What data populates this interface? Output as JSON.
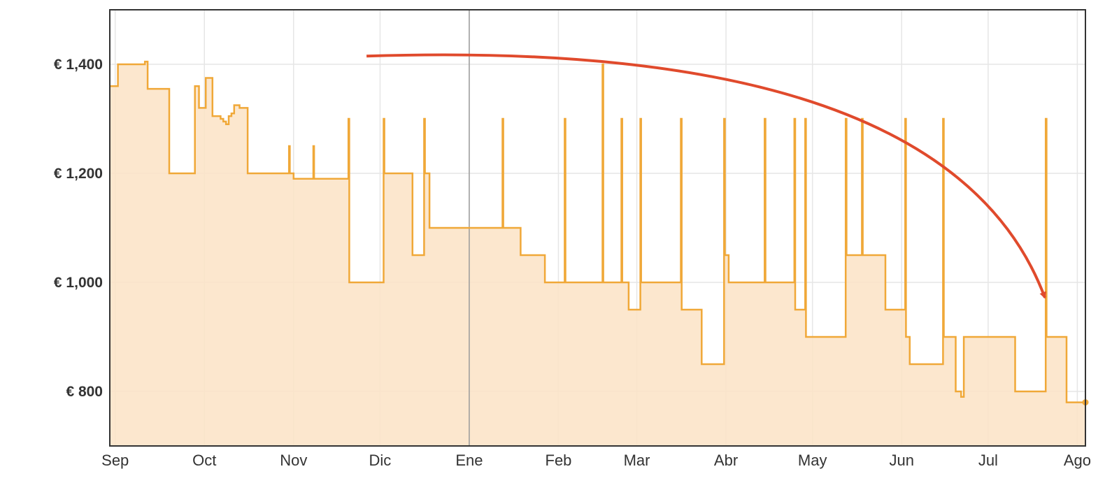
{
  "colors": {
    "line": "#f0a838",
    "fill": "#fbe3c6",
    "grid": "#e6e6e6",
    "frame": "#333333",
    "today_line": "#9a9a9a",
    "arrow": "#e04a2c",
    "text": "#333333"
  },
  "chart_data": {
    "type": "area",
    "step": true,
    "title": "",
    "xlabel": "",
    "ylabel": "",
    "x_unit": "days",
    "xlim": [
      0,
      361
    ],
    "ylim": [
      700,
      1500
    ],
    "grid": true,
    "x_ticks": [
      {
        "label": "Sep",
        "x": 2
      },
      {
        "label": "Oct",
        "x": 35
      },
      {
        "label": "Nov",
        "x": 68
      },
      {
        "label": "Dic",
        "x": 100
      },
      {
        "label": "Ene",
        "x": 133
      },
      {
        "label": "Feb",
        "x": 166
      },
      {
        "label": "Mar",
        "x": 195
      },
      {
        "label": "Abr",
        "x": 228
      },
      {
        "label": "May",
        "x": 260
      },
      {
        "label": "Jun",
        "x": 293
      },
      {
        "label": "Jul",
        "x": 325
      },
      {
        "label": "Ago",
        "x": 358
      }
    ],
    "y_ticks": [
      {
        "label": "€ 800",
        "y": 800
      },
      {
        "label": "€ 1,000",
        "y": 1000
      },
      {
        "label": "€ 1,200",
        "y": 1200
      },
      {
        "label": "€ 1,400",
        "y": 1400
      }
    ],
    "vertical_marker": {
      "x": 133
    },
    "arrow": {
      "from": [
        95,
        1415
      ],
      "control": [
        310,
        1450
      ],
      "to": [
        346,
        972
      ]
    },
    "series": [
      {
        "step_points": [
          [
            0,
            1360
          ],
          [
            3,
            1400
          ],
          [
            10,
            1400
          ],
          [
            13,
            1405
          ],
          [
            14,
            1355
          ],
          [
            20,
            1355
          ],
          [
            22,
            1200
          ],
          [
            31,
            1200
          ],
          [
            31.5,
            1360
          ],
          [
            33,
            1320
          ],
          [
            35,
            1320
          ],
          [
            35.5,
            1375
          ],
          [
            38,
            1305
          ],
          [
            41,
            1300
          ],
          [
            42,
            1295
          ],
          [
            43,
            1290
          ],
          [
            44,
            1305
          ],
          [
            45,
            1310
          ],
          [
            46,
            1325
          ],
          [
            48,
            1320
          ],
          [
            51,
            1200
          ],
          [
            66,
            1200
          ],
          [
            66.3,
            1250
          ],
          [
            66.6,
            1200
          ],
          [
            68,
            1190
          ],
          [
            75,
            1190
          ],
          [
            75.3,
            1250
          ],
          [
            75.6,
            1190
          ],
          [
            88,
            1190
          ],
          [
            88.3,
            1300
          ],
          [
            88.6,
            1000
          ],
          [
            101,
            1000
          ],
          [
            101.3,
            1300
          ],
          [
            101.6,
            1200
          ],
          [
            112,
            1200
          ],
          [
            112,
            1050
          ],
          [
            116,
            1050
          ],
          [
            116.3,
            1300
          ],
          [
            116.6,
            1200
          ],
          [
            118,
            1200
          ],
          [
            118.3,
            1100
          ],
          [
            133,
            1100
          ],
          [
            145,
            1100
          ],
          [
            145.3,
            1300
          ],
          [
            145.6,
            1100
          ],
          [
            152,
            1100
          ],
          [
            152,
            1050
          ],
          [
            161,
            1050
          ],
          [
            161,
            1000
          ],
          [
            168,
            1000
          ],
          [
            168.3,
            1300
          ],
          [
            168.6,
            1000
          ],
          [
            182,
            1000
          ],
          [
            182.3,
            1400
          ],
          [
            182.6,
            1000
          ],
          [
            189,
            1000
          ],
          [
            189.3,
            1300
          ],
          [
            189.6,
            1000
          ],
          [
            192,
            1000
          ],
          [
            192,
            950
          ],
          [
            196,
            950
          ],
          [
            196.3,
            1300
          ],
          [
            196.6,
            1000
          ],
          [
            211,
            1000
          ],
          [
            211.3,
            1300
          ],
          [
            211.6,
            950
          ],
          [
            219,
            950
          ],
          [
            219,
            850
          ],
          [
            227,
            850
          ],
          [
            227.3,
            1300
          ],
          [
            227.6,
            1050
          ],
          [
            229,
            1050
          ],
          [
            229,
            1000
          ],
          [
            242,
            1000
          ],
          [
            242.3,
            1300
          ],
          [
            242.6,
            1000
          ],
          [
            253,
            1000
          ],
          [
            253.3,
            1300
          ],
          [
            253.6,
            950
          ],
          [
            257,
            950
          ],
          [
            257.3,
            1300
          ],
          [
            257.6,
            900
          ],
          [
            272,
            900
          ],
          [
            272.3,
            1300
          ],
          [
            272.6,
            1050
          ],
          [
            278,
            1050
          ],
          [
            278.3,
            1300
          ],
          [
            278.6,
            1050
          ],
          [
            287,
            1050
          ],
          [
            287,
            950
          ],
          [
            294,
            950
          ],
          [
            294.3,
            1300
          ],
          [
            294.6,
            900
          ],
          [
            296,
            900
          ],
          [
            296,
            850
          ],
          [
            308,
            850
          ],
          [
            308.3,
            1300
          ],
          [
            308.6,
            900
          ],
          [
            313,
            900
          ],
          [
            313,
            800
          ],
          [
            315,
            800
          ],
          [
            315,
            790
          ],
          [
            316,
            790
          ],
          [
            316,
            900
          ],
          [
            335,
            900
          ],
          [
            335,
            800
          ],
          [
            346,
            800
          ],
          [
            346.3,
            1300
          ],
          [
            346.6,
            900
          ],
          [
            354,
            900
          ],
          [
            354,
            780
          ],
          [
            361,
            780
          ]
        ]
      }
    ]
  }
}
